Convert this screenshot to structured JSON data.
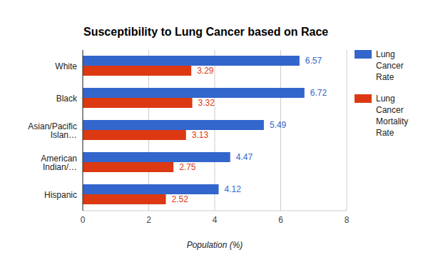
{
  "chart_data": {
    "type": "bar",
    "title": "Susceptibility to Lung Cancer based on Race",
    "orientation": "horizontal",
    "categories": [
      "White",
      "Black",
      "Asian/Pacific Islan…",
      "American Indian/…",
      "Hispanic"
    ],
    "series": [
      {
        "name": "Lung Cancer Rate",
        "color": "#3366cc",
        "values": [
          6.57,
          6.72,
          5.49,
          4.47,
          4.12
        ]
      },
      {
        "name": "Lung Cancer Mortality Rate",
        "color": "#dc3912",
        "values": [
          3.29,
          3.32,
          3.13,
          2.75,
          2.52
        ]
      }
    ],
    "xlabel": "Population (%)",
    "xlim": [
      0,
      8
    ],
    "xticks": [
      0,
      2,
      4,
      6,
      8
    ],
    "grid": true,
    "legend": "right",
    "data_labels": true
  }
}
